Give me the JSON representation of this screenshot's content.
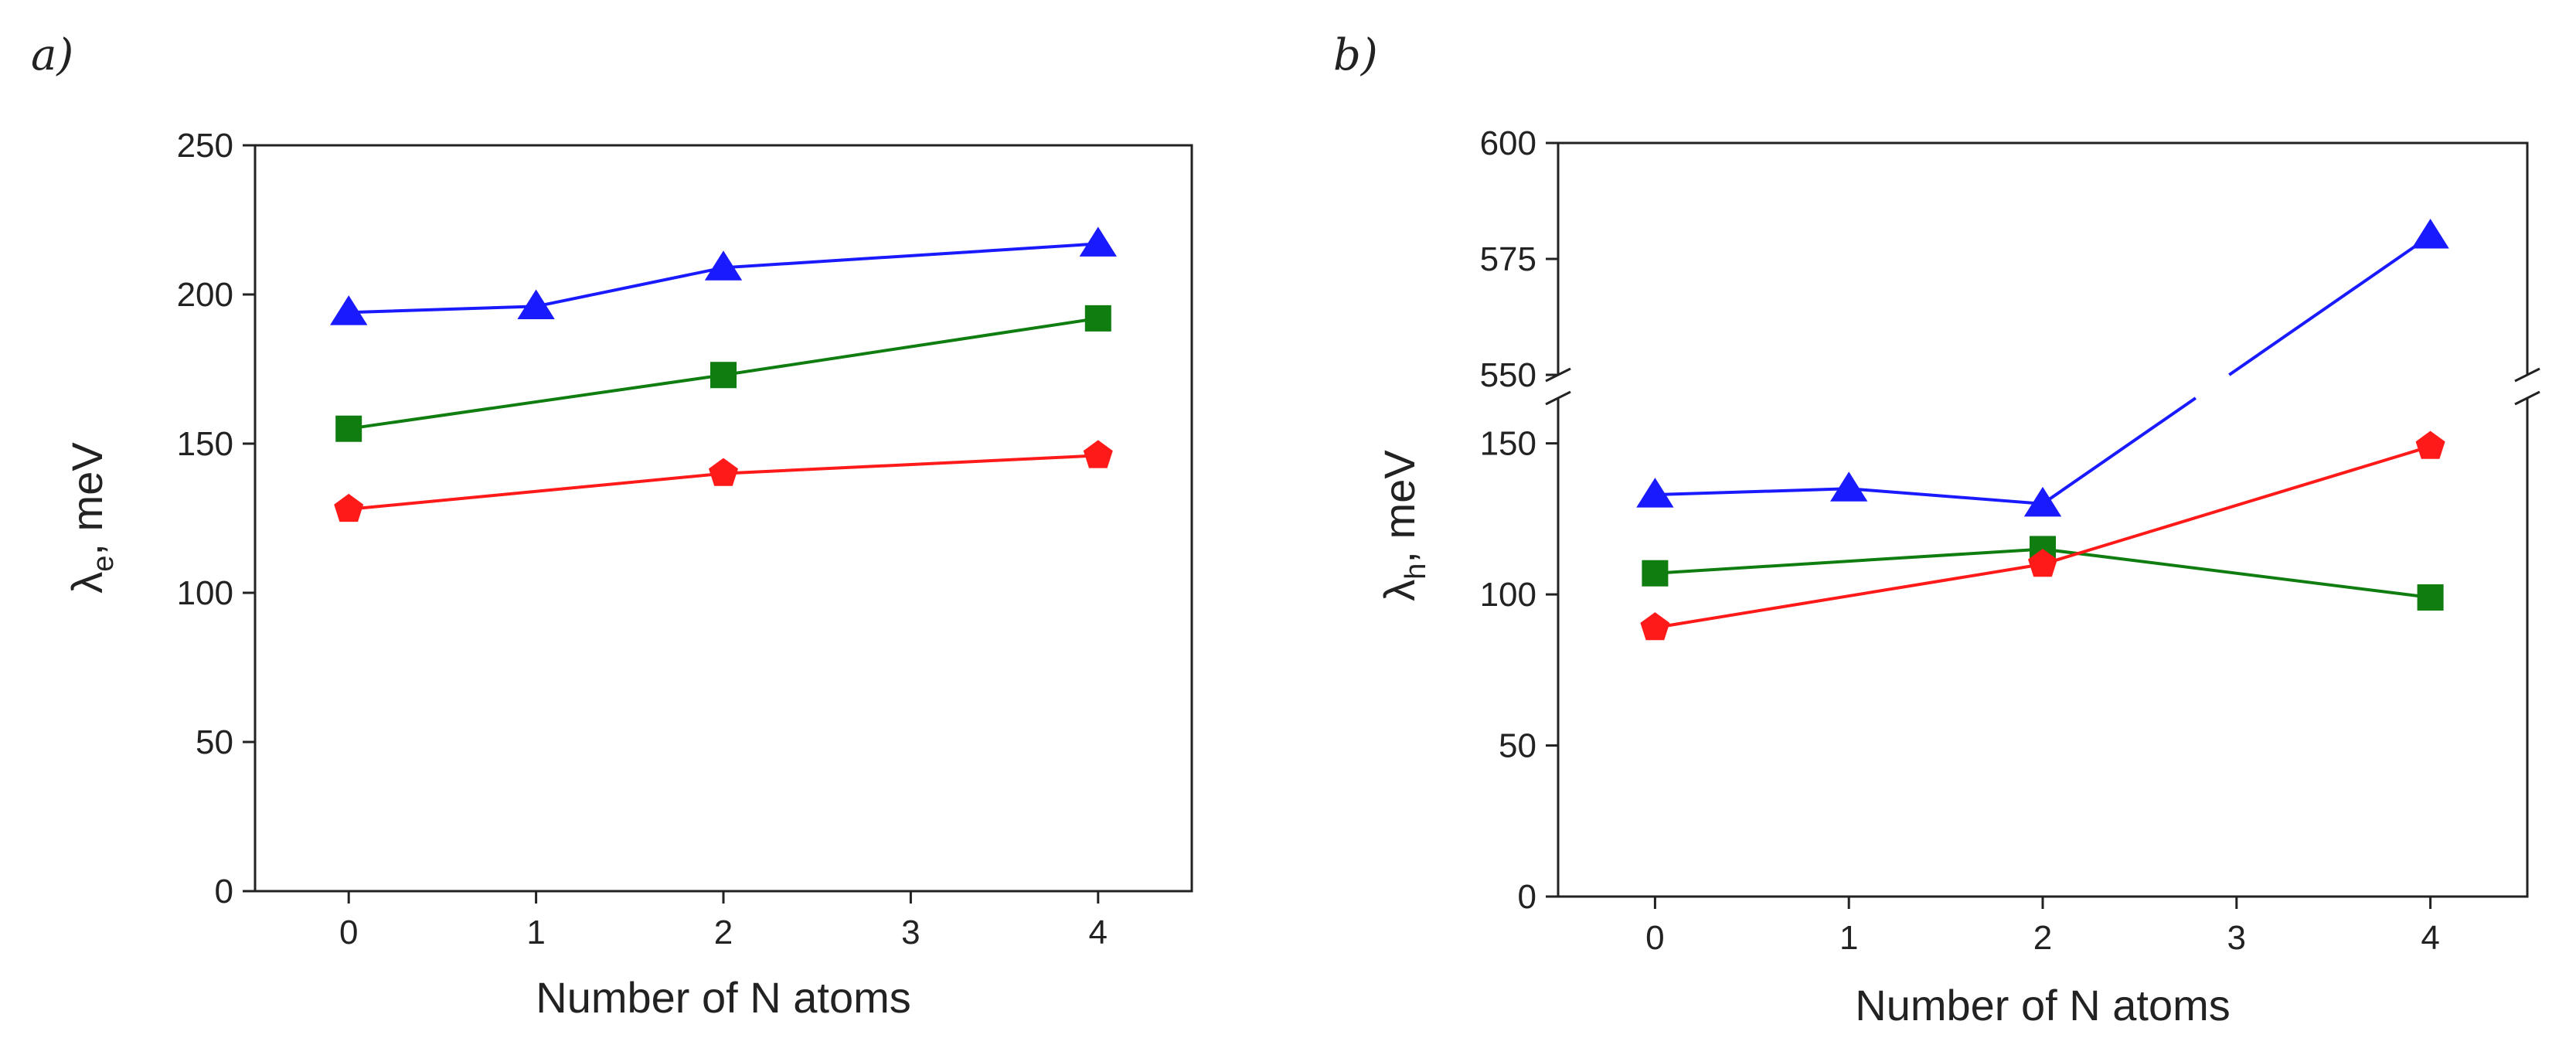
{
  "colors": {
    "blue": "#1a1aff",
    "green": "#0f7d0f",
    "red": "#ff1a1a"
  },
  "chart_data": [
    {
      "type": "line",
      "panel_label": "a)",
      "xlabel": "Number of N atoms",
      "ylabel_symbol": "λ",
      "ylabel_sub": "e",
      "ylabel_rest": ", meV",
      "xlim": [
        -0.5,
        4.5
      ],
      "ylim": [
        0,
        250
      ],
      "xticks": [
        "0",
        "1",
        "2",
        "3",
        "4"
      ],
      "yticks": [
        "0",
        "50",
        "100",
        "150",
        "200",
        "250"
      ],
      "series": [
        {
          "name": "blue triangles",
          "color": "#1a1aff",
          "marker": "triangle",
          "x": [
            0,
            1,
            2,
            4
          ],
          "y": [
            194,
            196,
            209,
            217
          ]
        },
        {
          "name": "green squares",
          "color": "#0f7d0f",
          "marker": "square",
          "x": [
            0,
            2,
            4
          ],
          "y": [
            155,
            173,
            192
          ]
        },
        {
          "name": "red pentagons",
          "color": "#ff1a1a",
          "marker": "pentagon",
          "x": [
            0,
            2,
            4
          ],
          "y": [
            128,
            140,
            146
          ]
        }
      ]
    },
    {
      "type": "line",
      "panel_label": "b)",
      "xlabel": "Number of N atoms",
      "ylabel_symbol": "λ",
      "ylabel_sub": "h",
      "ylabel_rest": ", meV",
      "xlim": [
        -0.5,
        4.5
      ],
      "ylim_lower": [
        0,
        165
      ],
      "ylim_upper": [
        550,
        600
      ],
      "axis_break": true,
      "xticks": [
        "0",
        "1",
        "2",
        "3",
        "4"
      ],
      "yticks_lower": [
        "0",
        "50",
        "100",
        "150"
      ],
      "yticks_upper": [
        "550",
        "575",
        "600"
      ],
      "series": [
        {
          "name": "blue triangles",
          "color": "#1a1aff",
          "marker": "triangle",
          "x": [
            0,
            1,
            2,
            4
          ],
          "y": [
            133,
            135,
            130,
            580
          ]
        },
        {
          "name": "green squares",
          "color": "#0f7d0f",
          "marker": "square",
          "x": [
            0,
            2,
            4
          ],
          "y": [
            107,
            115,
            99
          ]
        },
        {
          "name": "red pentagons",
          "color": "#ff1a1a",
          "marker": "pentagon",
          "x": [
            0,
            2,
            4
          ],
          "y": [
            89,
            110,
            149
          ]
        }
      ]
    }
  ]
}
